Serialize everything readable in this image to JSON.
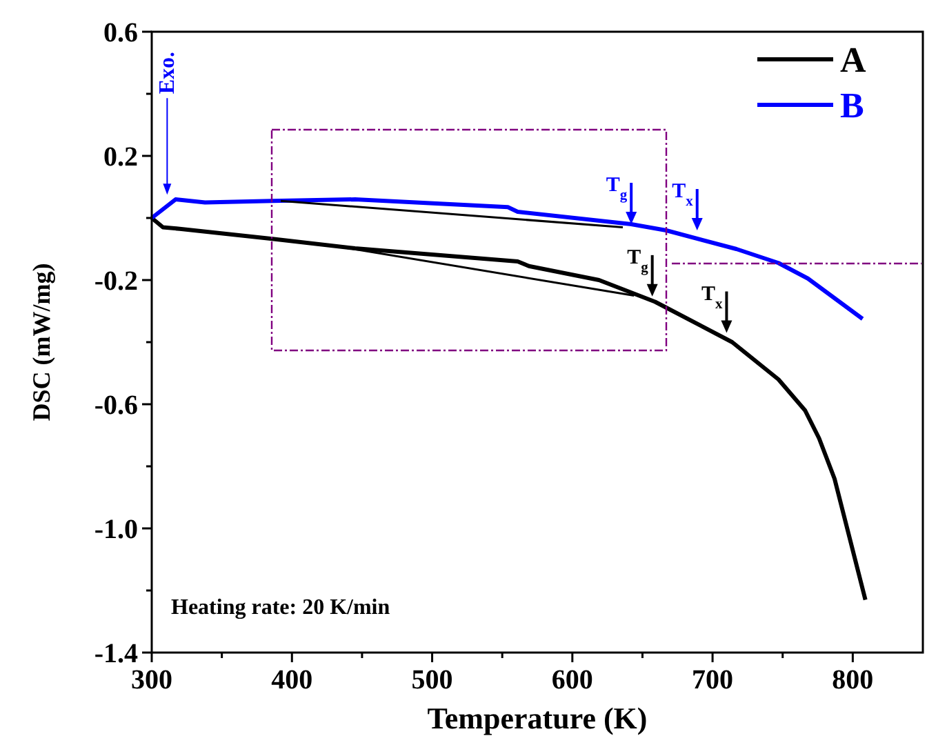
{
  "chart_data": {
    "type": "line",
    "xlabel": "Temperature (K)",
    "ylabel": "DSC (mW/mg)",
    "xlim": [
      300,
      850
    ],
    "ylim": [
      -1.4,
      0.6
    ],
    "xticks": [
      300,
      {
        "value": 350,
        "label": null
      },
      400,
      {
        "value": 450,
        "label": null
      },
      500,
      {
        "value": 550,
        "label": null
      },
      600,
      {
        "value": 650,
        "label": null
      },
      700,
      {
        "value": 750,
        "label": null
      },
      800
    ],
    "yticks": [
      -1.4,
      {
        "value": -1.2,
        "label": null
      },
      {
        "value": -1,
        "label": "-1.0"
      },
      {
        "value": -0.8,
        "label": null
      },
      -0.6,
      {
        "value": -0.4,
        "label": null
      },
      -0.2,
      {
        "value": 0,
        "label": null
      },
      0.2,
      {
        "value": 0.4,
        "label": null
      },
      0.6
    ],
    "legend": "top right",
    "grid": false,
    "line_style": "solid",
    "series": [
      {
        "name": "A",
        "color": "#000000",
        "x": [
          300,
          308,
          320,
          386,
          445,
          561,
          569,
          619,
          659,
          714,
          736,
          747,
          766,
          776,
          787,
          809
        ],
        "values": [
          0,
          -0.03,
          -0.035,
          -0.067,
          -0.098,
          -0.14,
          -0.155,
          -0.2,
          -0.27,
          -0.4,
          -0.48,
          -0.52,
          -0.62,
          -0.71,
          -0.84,
          -1.23
        ]
      },
      {
        "name": "B",
        "color": "#0000ff",
        "x": [
          300,
          317,
          338,
          386,
          445,
          554,
          561,
          642,
          667,
          717,
          747,
          768,
          807
        ],
        "values": [
          0,
          0.06,
          0.05,
          0.055,
          0.06,
          0.035,
          0.02,
          -0.02,
          -0.04,
          -0.1,
          -0.145,
          -0.195,
          -0.325
        ]
      },
      {
        "color": "#000000",
        "x": [
          392,
          636
        ],
        "values": [
          0.055,
          -0.03
        ]
      },
      {
        "color": "#000000",
        "x": [
          437,
          644
        ],
        "values": [
          -0.095,
          -0.25
        ]
      }
    ],
    "annotations": [
      {
        "text": "Exo.",
        "x": 311,
        "y": 0.075
      },
      {
        "text": "T$_{g}$",
        "x": 642,
        "y": -0.02
      },
      {
        "text": "T$_{x}$",
        "x": 689,
        "y": -0.04
      },
      {
        "text": "T$_{g}$",
        "x": 657,
        "y": -0.253
      },
      {
        "text": "T$_{x}$",
        "x": 710,
        "y": -0.37
      },
      "Heating rate: 20 K/min"
    ]
  }
}
